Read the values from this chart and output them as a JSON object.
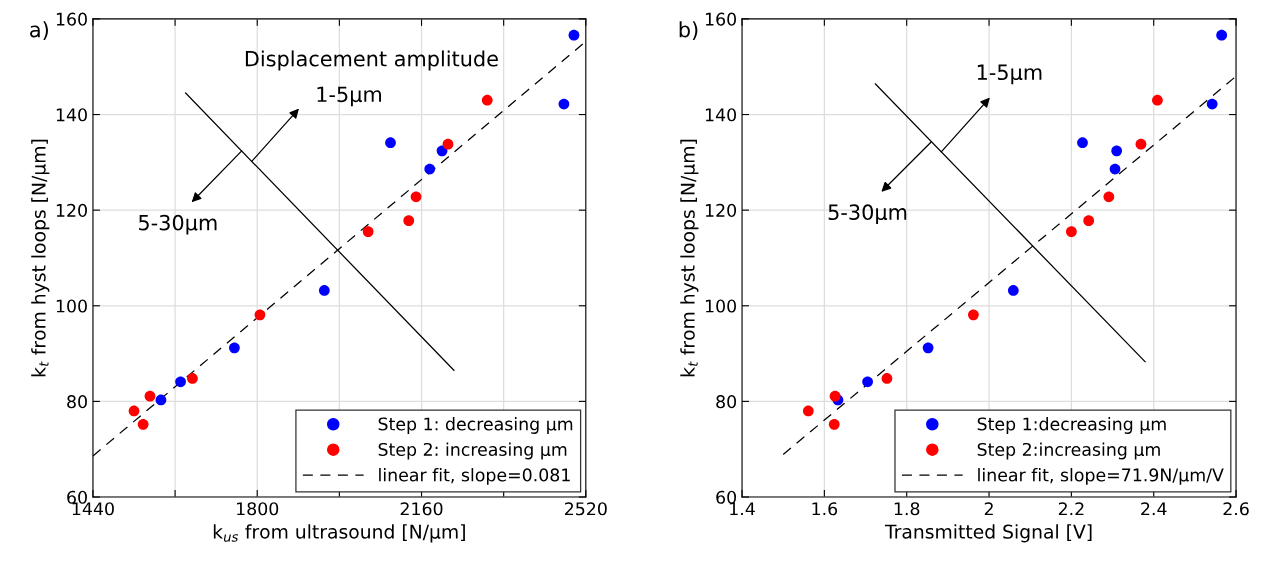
{
  "chart_data": [
    {
      "type": "scatter",
      "xlabel": "k$_{us}$ from ultrasound [N/μm]",
      "ylabel": "k$_{t}$ from hyst loops [N/μm]",
      "xlim": [
        1440,
        2520
      ],
      "ylim": [
        60,
        160
      ],
      "xticks": [
        1440,
        {
          "value": 1620,
          "label": null
        },
        1800,
        {
          "value": 1980,
          "label": null
        },
        2160,
        {
          "value": 2340,
          "label": null
        },
        2520
      ],
      "yticks": [
        60,
        80,
        100,
        120,
        140,
        160
      ],
      "grid": true,
      "legend": "bottom right",
      "marker": "circle",
      "annotations": [
        "a)",
        "Displacement amplitude",
        {
          "text": "1-5μm",
          "x": 1788,
          "y": 130.2
        },
        {
          "text": "5-30μm",
          "x": 1766,
          "y": 132.4
        }
      ],
      "series": [
        {
          "name": "Step 1: decreasing μm",
          "color": "#0000ff",
          "x": [
            2494,
            2472,
            2092,
            2205,
            2178,
            1947,
            1750,
            1632,
            1589
          ],
          "values": [
            156.6,
            142.2,
            134.1,
            132.4,
            128.6,
            103.2,
            91.2,
            84.1,
            80.3
          ]
        },
        {
          "name": "Step 2: increasing μm",
          "color": "#ff0000",
          "x": [
            2304,
            2218,
            2148,
            2132,
            2043,
            1806,
            1658,
            1565,
            1530,
            1550
          ],
          "values": [
            143.0,
            133.8,
            122.8,
            117.8,
            115.5,
            98.1,
            84.8,
            81.1,
            78.0,
            75.2
          ]
        },
        {
          "name": "linear fit, slope=0.081",
          "type": "line",
          "line_style": "dashed",
          "marker": "none",
          "color": "#000000",
          "x": [
            1440,
            2520
          ],
          "values": [
            68.6,
            155.3
          ]
        },
        {
          "type": "line",
          "line_style": "solid",
          "marker": "none",
          "color": "#000000",
          "x": [
            1643,
            2231
          ],
          "values": [
            144.5,
            86.5
          ]
        }
      ]
    },
    {
      "type": "scatter",
      "xlabel": "Transmitted Signal [V]",
      "ylabel": "k$_{t}$ from hyst loops [N/μm]",
      "xlim": [
        1.4,
        2.6
      ],
      "ylim": [
        60,
        160
      ],
      "xticks": [
        1.4,
        1.6,
        1.8,
        {
          "value": 2.0,
          "label": "2"
        },
        2.2,
        2.4,
        2.6
      ],
      "yticks": [
        60,
        80,
        100,
        120,
        140,
        160
      ],
      "grid": true,
      "legend": "bottom right",
      "marker": "circle",
      "annotations": [
        "b)",
        {
          "text": "1-5μm",
          "x": 1.884,
          "y": 132.2
        },
        {
          "text": "5-30μm",
          "x": 1.86,
          "y": 134.3
        }
      ],
      "series": [
        {
          "name": "Step 1:decreasing μm",
          "color": "#0000ff",
          "x": [
            2.565,
            2.542,
            2.227,
            2.31,
            2.306,
            2.059,
            1.852,
            1.705,
            1.633
          ],
          "values": [
            156.6,
            142.2,
            134.1,
            132.4,
            128.6,
            103.2,
            91.2,
            84.1,
            80.3
          ]
        },
        {
          "name": "Step 2:increasing μm",
          "color": "#ff0000",
          "x": [
            2.409,
            2.369,
            2.291,
            2.242,
            2.2,
            1.962,
            1.752,
            1.626,
            1.561,
            1.624
          ],
          "values": [
            143.0,
            133.8,
            122.8,
            117.8,
            115.5,
            98.1,
            84.8,
            81.1,
            78.0,
            75.2
          ]
        },
        {
          "name": "linear fit, slope=71.9N/μm/V",
          "type": "line",
          "line_style": "dashed",
          "marker": "none",
          "color": "#000000",
          "x": [
            1.5,
            2.6
          ],
          "values": [
            68.9,
            148.0
          ]
        },
        {
          "type": "line",
          "line_style": "solid",
          "marker": "none",
          "color": "#000000",
          "x": [
            1.724,
            2.379
          ],
          "values": [
            146.4,
            88.3
          ]
        }
      ]
    }
  ]
}
